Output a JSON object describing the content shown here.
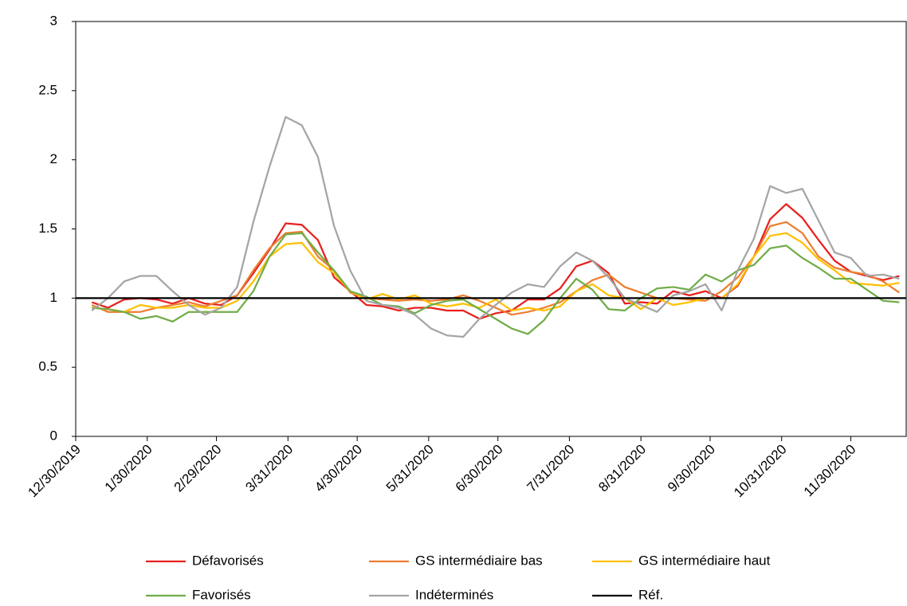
{
  "chart_data": {
    "type": "line",
    "x": [
      "1/6/2020",
      "1/13/2020",
      "1/20/2020",
      "1/27/2020",
      "2/3/2020",
      "2/10/2020",
      "2/17/2020",
      "2/24/2020",
      "3/2/2020",
      "3/9/2020",
      "3/16/2020",
      "3/23/2020",
      "3/30/2020",
      "4/6/2020",
      "4/13/2020",
      "4/20/2020",
      "4/27/2020",
      "5/4/2020",
      "5/11/2020",
      "5/18/2020",
      "5/25/2020",
      "6/1/2020",
      "6/8/2020",
      "6/15/2020",
      "6/22/2020",
      "6/29/2020",
      "7/6/2020",
      "7/13/2020",
      "7/20/2020",
      "7/27/2020",
      "8/3/2020",
      "8/10/2020",
      "8/17/2020",
      "8/24/2020",
      "8/31/2020",
      "9/7/2020",
      "9/14/2020",
      "9/21/2020",
      "9/28/2020",
      "10/5/2020",
      "10/12/2020",
      "10/19/2020",
      "10/26/2020",
      "11/2/2020",
      "11/9/2020",
      "11/16/2020",
      "11/23/2020",
      "11/30/2020",
      "12/7/2020",
      "12/14/2020",
      "12/21/2020"
    ],
    "series": [
      {
        "name": "Défavorisés",
        "color": "#e8201e",
        "values": [
          0.97,
          0.93,
          0.99,
          1.0,
          0.99,
          0.96,
          1.0,
          0.96,
          0.95,
          1.02,
          1.18,
          1.35,
          1.54,
          1.53,
          1.42,
          1.15,
          1.05,
          0.95,
          0.94,
          0.91,
          0.93,
          0.93,
          0.91,
          0.91,
          0.85,
          0.89,
          0.91,
          0.99,
          0.99,
          1.07,
          1.23,
          1.27,
          1.18,
          0.96,
          0.97,
          0.96,
          1.05,
          1.02,
          1.05,
          1.0,
          1.09,
          1.3,
          1.57,
          1.68,
          1.58,
          1.42,
          1.27,
          1.19,
          1.16,
          1.13,
          1.16
        ]
      },
      {
        "name": "GS intermédiaire bas",
        "color": "#ed7d31",
        "values": [
          0.95,
          0.9,
          0.9,
          0.9,
          0.93,
          0.95,
          0.97,
          0.94,
          0.98,
          1.02,
          1.2,
          1.36,
          1.47,
          1.48,
          1.3,
          1.2,
          1.04,
          1.0,
          0.99,
          0.98,
          0.99,
          0.98,
          0.99,
          1.02,
          0.98,
          0.93,
          0.88,
          0.9,
          0.93,
          0.97,
          1.05,
          1.13,
          1.17,
          1.08,
          1.04,
          1.0,
          1.0,
          0.99,
          0.98,
          1.05,
          1.15,
          1.3,
          1.52,
          1.55,
          1.47,
          1.3,
          1.22,
          1.19,
          1.17,
          1.12,
          1.04
        ]
      },
      {
        "name": "GS intermédiaire haut",
        "color": "#ffc000",
        "values": [
          0.93,
          0.92,
          0.9,
          0.95,
          0.93,
          0.93,
          0.95,
          0.93,
          0.93,
          0.98,
          1.12,
          1.3,
          1.39,
          1.4,
          1.26,
          1.18,
          1.05,
          0.99,
          1.03,
          0.99,
          1.02,
          0.96,
          0.94,
          0.96,
          0.93,
          0.99,
          0.91,
          0.93,
          0.91,
          0.94,
          1.05,
          1.1,
          1.02,
          1.0,
          0.92,
          1.0,
          0.95,
          0.97,
          1.0,
          1.0,
          1.1,
          1.3,
          1.45,
          1.47,
          1.4,
          1.28,
          1.2,
          1.11,
          1.1,
          1.09,
          1.11
        ]
      },
      {
        "name": "Favorisés",
        "color": "#70ad47",
        "values": [
          0.93,
          0.92,
          0.9,
          0.85,
          0.87,
          0.83,
          0.9,
          0.9,
          0.9,
          0.9,
          1.05,
          1.3,
          1.46,
          1.47,
          1.33,
          1.2,
          1.05,
          1.01,
          0.95,
          0.94,
          0.89,
          0.95,
          0.98,
          0.99,
          0.92,
          0.85,
          0.78,
          0.74,
          0.84,
          1.0,
          1.14,
          1.06,
          0.92,
          0.91,
          1.0,
          1.07,
          1.08,
          1.06,
          1.17,
          1.12,
          1.2,
          1.24,
          1.36,
          1.38,
          1.29,
          1.22,
          1.14,
          1.14,
          1.06,
          0.98,
          0.97
        ]
      },
      {
        "name": "Indéterminés",
        "color": "#a5a5a5",
        "values": [
          0.91,
          1.0,
          1.12,
          1.16,
          1.16,
          1.05,
          0.95,
          0.88,
          0.93,
          1.08,
          1.55,
          1.95,
          2.31,
          2.25,
          2.02,
          1.52,
          1.2,
          0.98,
          0.95,
          0.93,
          0.88,
          0.78,
          0.73,
          0.72,
          0.85,
          0.95,
          1.04,
          1.1,
          1.08,
          1.23,
          1.33,
          1.27,
          1.15,
          1.0,
          0.95,
          0.9,
          1.02,
          1.05,
          1.1,
          0.91,
          1.2,
          1.43,
          1.81,
          1.76,
          1.79,
          1.56,
          1.33,
          1.29,
          1.16,
          1.17,
          1.14
        ]
      }
    ],
    "reference_line": {
      "name": "Réf.",
      "value": 1,
      "color": "#000000"
    },
    "xlim": [
      "12/30/2019",
      "12/24/2020"
    ],
    "xticks": [
      "12/30/2019",
      "1/30/2020",
      "2/29/2020",
      "3/31/2020",
      "4/30/2020",
      "5/31/2020",
      "6/30/2020",
      "7/31/2020",
      "8/31/2020",
      "9/30/2020",
      "10/31/2020",
      "11/30/2020"
    ],
    "ylim": [
      0,
      3
    ],
    "yticks": [
      0,
      0.5,
      1,
      1.5,
      2,
      2.5,
      3
    ],
    "grid": false
  }
}
